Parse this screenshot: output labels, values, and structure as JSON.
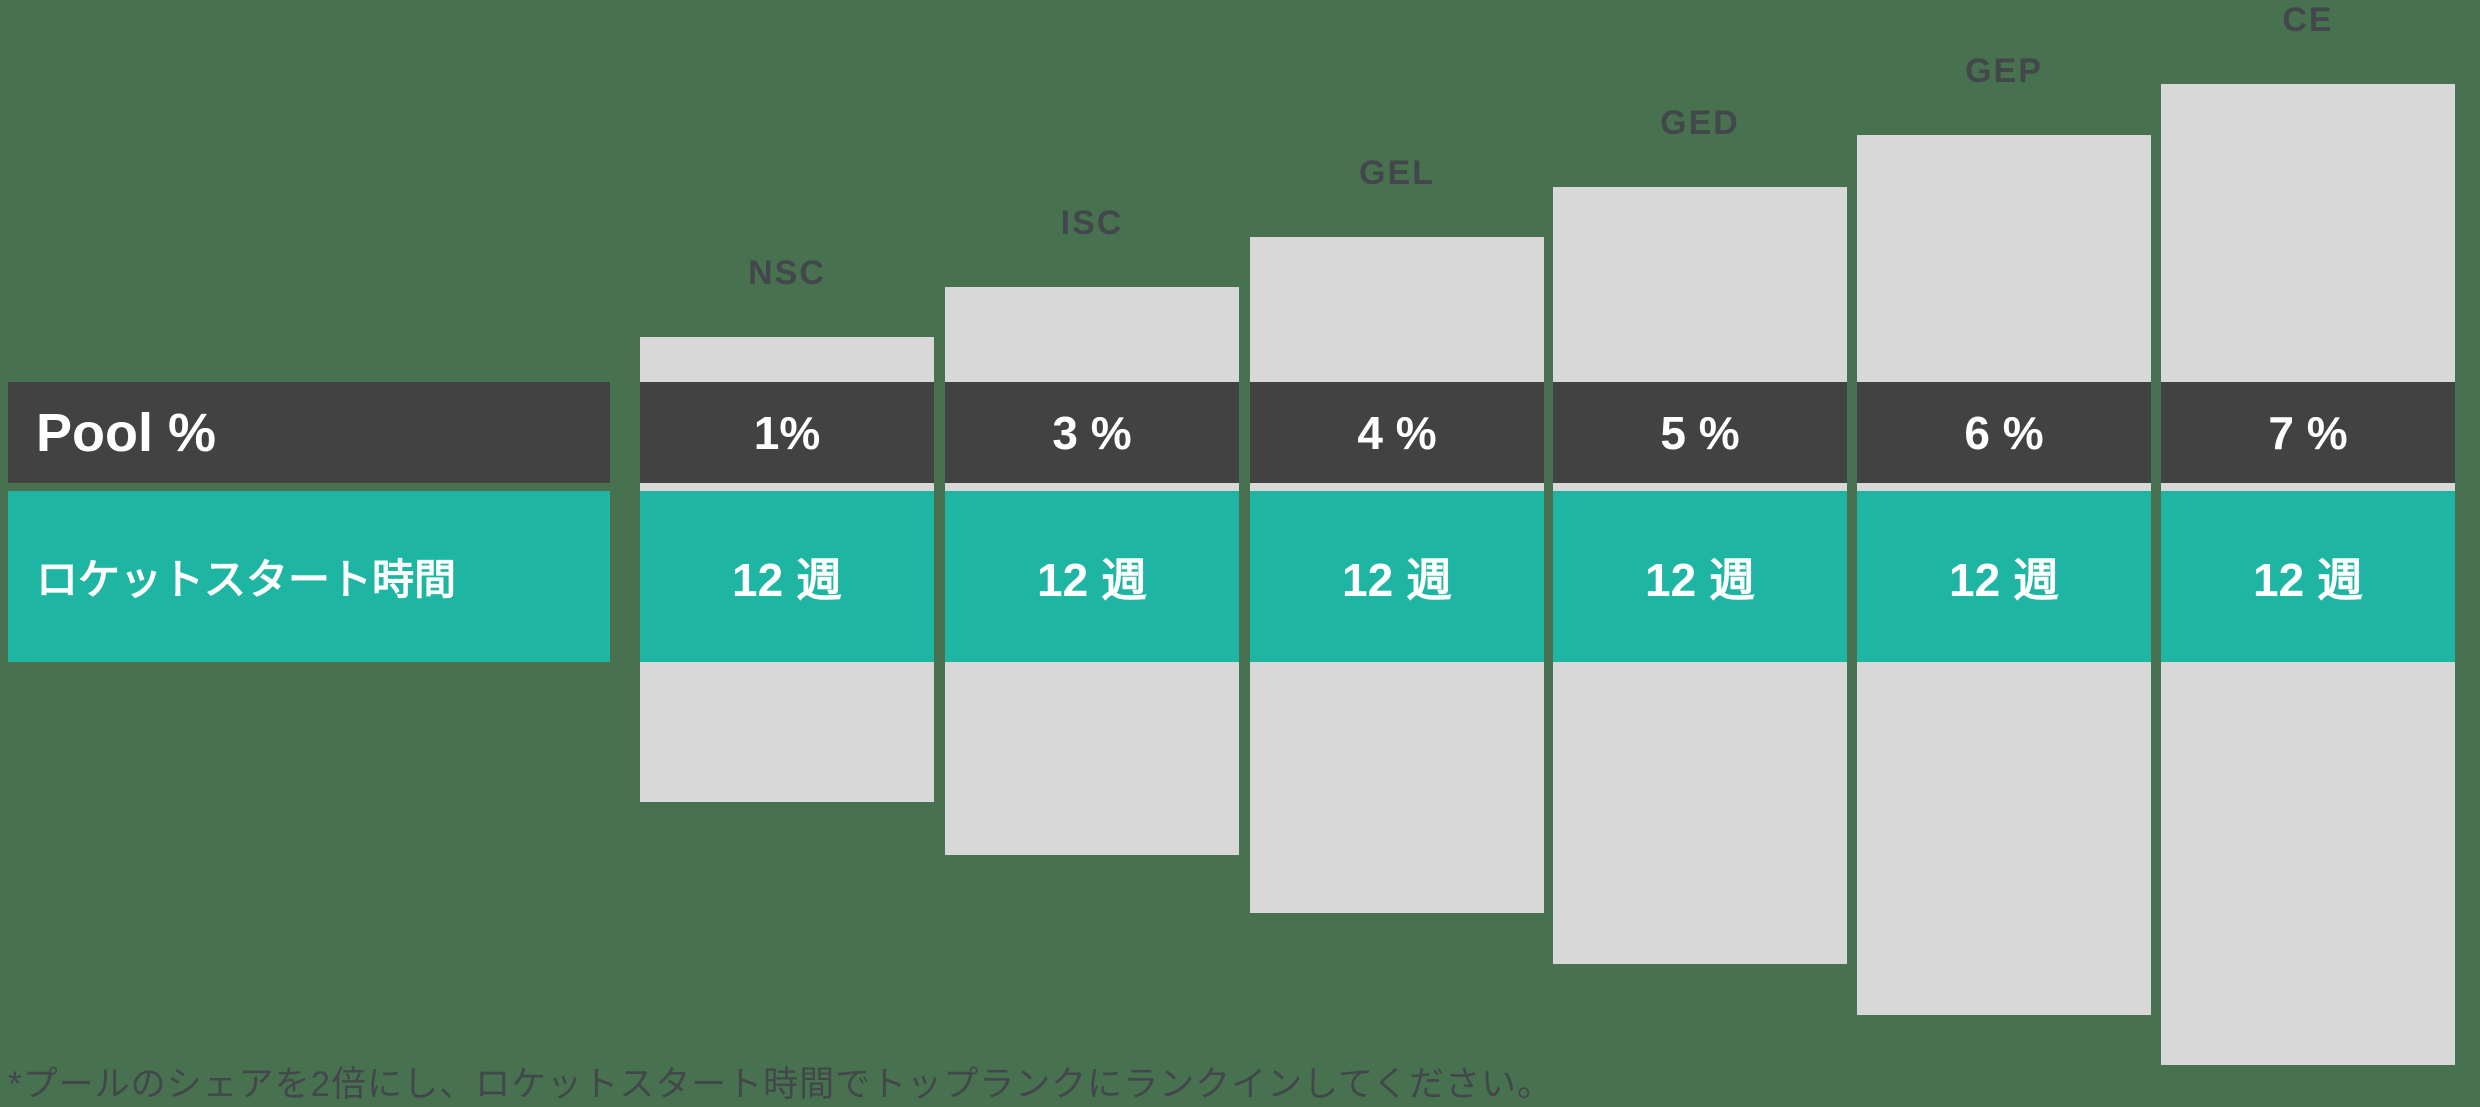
{
  "rows": {
    "pool_label": "Pool %",
    "time_label": "ロケットスタート時間"
  },
  "columns": [
    {
      "code": "NSC",
      "pool": "1%",
      "time": "12 週"
    },
    {
      "code": "ISC",
      "pool": "3 %",
      "time": "12 週"
    },
    {
      "code": "GEL",
      "pool": "4 %",
      "time": "12 週"
    },
    {
      "code": "GED",
      "pool": "5 %",
      "time": "12 週"
    },
    {
      "code": "GEP",
      "pool": "6 %",
      "time": "12 週"
    },
    {
      "code": "CE",
      "pool": "7 %",
      "time": "12 週"
    }
  ],
  "footnote": "*プールのシェアを2倍にし、ロケットスタート時間でトップランクにランクインしてください。",
  "colors": {
    "background": "#48724F",
    "bar": "#D8D8D8",
    "pool_row": "#424242",
    "time_row": "#1FB5A3",
    "dark_text": "#42474B",
    "value_text": "#FFFFFF"
  },
  "chart_data": {
    "type": "bar",
    "categories": [
      "NSC",
      "ISC",
      "GEL",
      "GED",
      "GEP",
      "CE"
    ],
    "series": [
      {
        "name": "Pool %",
        "values": [
          1,
          3,
          4,
          5,
          6,
          7
        ],
        "unit": "%"
      },
      {
        "name": "ロケットスタート時間",
        "values": [
          12,
          12,
          12,
          12,
          12,
          12
        ],
        "unit": "週"
      }
    ],
    "title": "",
    "xlabel": "",
    "ylabel": "",
    "annotations": [
      "*プールのシェアを2倍にし、ロケットスタート時間でトップランクにランクインしてください。"
    ],
    "layout_hint": "stepped pedestal bars rising left to right; two overlay value bands (dark = Pool %, teal = rocket-start weeks); row legend block at left; grid off; no axes"
  }
}
